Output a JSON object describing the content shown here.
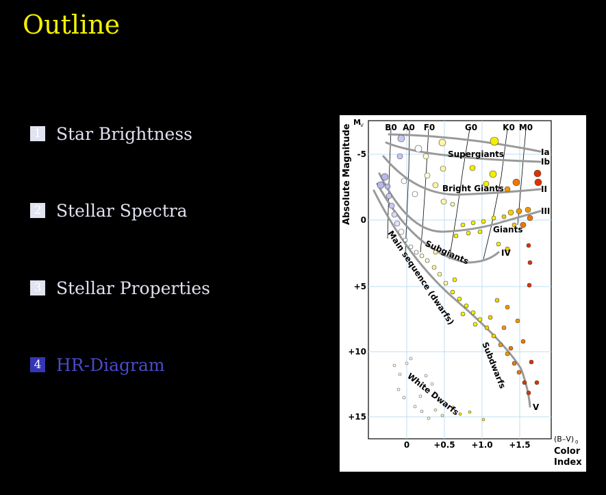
{
  "header": {
    "title": "Outline"
  },
  "outline": [
    {
      "num": "1",
      "label": "Star Brightness",
      "active": false
    },
    {
      "num": "2",
      "label": "Stellar Spectra",
      "active": false
    },
    {
      "num": "3",
      "label": "Stellar Properties",
      "active": false
    },
    {
      "num": "4",
      "label": "HR-Diagram",
      "active": true
    }
  ],
  "diagram": {
    "y_axis_label": "Absolute Magnitude",
    "y_axis_symbol": "M",
    "y_axis_symbol_sub": "V",
    "x_axis_label_1": "(B–V)",
    "x_axis_label_sub": "0",
    "x_axis_label_2": "Color",
    "x_axis_label_3": "Index",
    "spectral_classes": [
      "B0",
      "A0",
      "F0",
      "G0",
      "K0",
      "M0"
    ],
    "y_ticks": [
      "-5",
      "0",
      "+5",
      "+10",
      "+15"
    ],
    "x_ticks": [
      "0",
      "+0.5",
      "+1.0",
      "+1.5"
    ],
    "region_labels": [
      "Supergiants",
      "Bright Giants",
      "Giants",
      "Subgiants",
      "Main sequence (dwarfs)",
      "Subdwarfs",
      "White Dwarfs"
    ],
    "luminosity_classes": [
      "Ia",
      "Ib",
      "II",
      "III",
      "IV",
      "V"
    ],
    "colors": {
      "blue": "#b8b8ee",
      "white": "#ffffff",
      "yellow": "#f4f000",
      "orange": "#ee9900",
      "red": "#dd3300",
      "curve": "#999999",
      "grid": "#bfdcf2"
    }
  }
}
